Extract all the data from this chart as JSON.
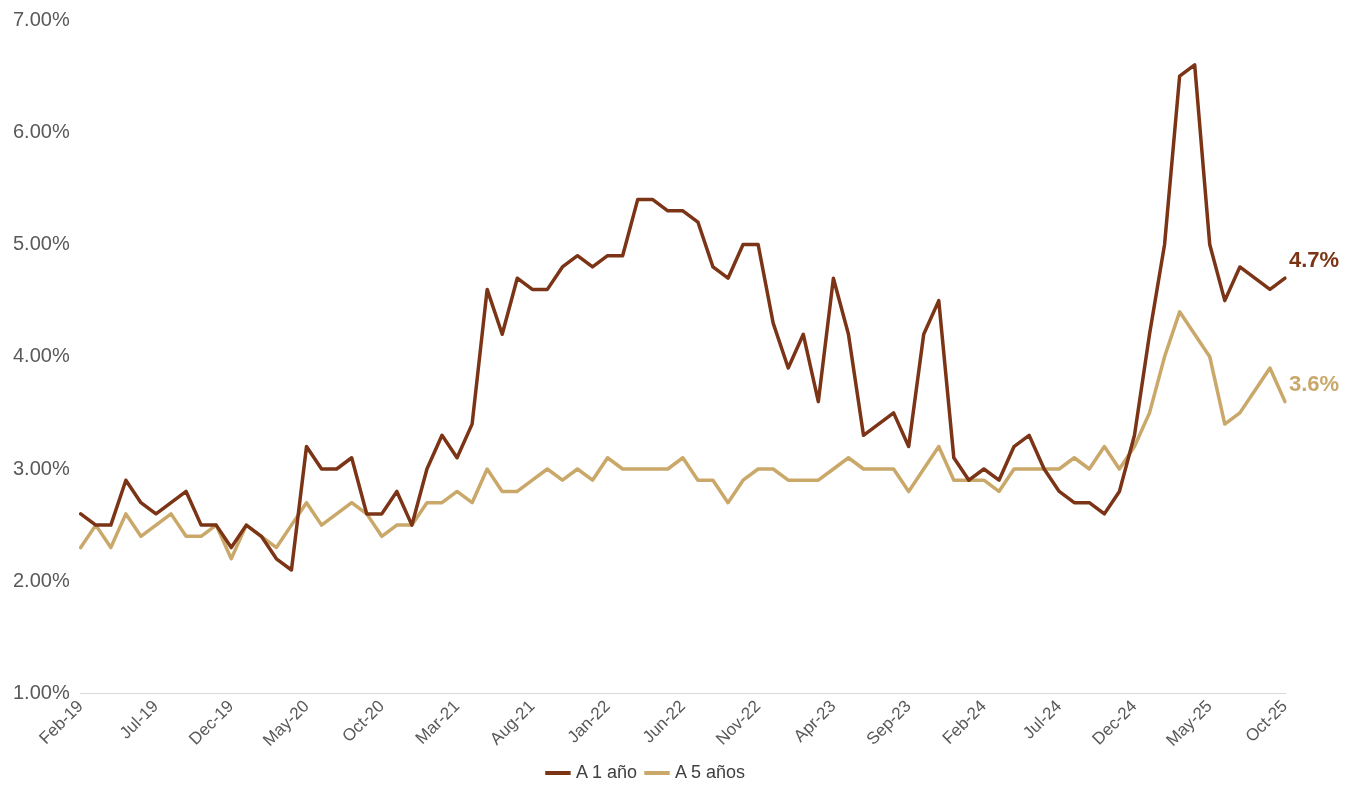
{
  "chart_data": {
    "type": "line",
    "categories": [
      "Feb-19",
      null,
      null,
      null,
      null,
      "Jul-19",
      null,
      null,
      null,
      null,
      "Dec-19",
      null,
      null,
      null,
      null,
      "May-20",
      null,
      null,
      null,
      null,
      "Oct-20",
      null,
      null,
      null,
      null,
      "Mar-21",
      null,
      null,
      null,
      null,
      "Aug-21",
      null,
      null,
      null,
      null,
      "Jan-22",
      null,
      null,
      null,
      null,
      "Jun-22",
      null,
      null,
      null,
      null,
      "Nov-22",
      null,
      null,
      null,
      null,
      "Apr-23",
      null,
      null,
      null,
      null,
      "Sep-23",
      null,
      null,
      null,
      null,
      "Feb-24",
      null,
      null,
      null,
      null,
      "Jul-24",
      null,
      null,
      null,
      null,
      "Dec-24",
      null,
      null,
      null,
      null,
      "May-25",
      null,
      null,
      null,
      null,
      "Oct-25"
    ],
    "series": [
      {
        "name": "A 1 año",
        "color": "#7b3416",
        "values": [
          2.6,
          2.5,
          2.5,
          2.9,
          2.7,
          2.6,
          2.7,
          2.8,
          2.5,
          2.5,
          2.3,
          2.5,
          2.4,
          2.2,
          2.1,
          3.2,
          3.0,
          3.0,
          3.1,
          2.6,
          2.6,
          2.8,
          2.5,
          3.0,
          3.3,
          3.1,
          3.4,
          4.6,
          4.2,
          4.7,
          4.6,
          4.6,
          4.8,
          4.9,
          4.8,
          4.9,
          4.9,
          5.4,
          5.4,
          5.3,
          5.3,
          5.2,
          4.8,
          4.7,
          5.0,
          5.0,
          4.3,
          3.9,
          4.2,
          3.6,
          4.7,
          4.2,
          3.3,
          3.4,
          3.5,
          3.2,
          4.2,
          4.5,
          3.1,
          2.9,
          3.0,
          2.9,
          3.2,
          3.3,
          3.0,
          2.8,
          2.7,
          2.7,
          2.6,
          2.8,
          3.3,
          4.2,
          5.0,
          6.5,
          6.6,
          5.0,
          4.5,
          4.8,
          4.7,
          4.6,
          4.7
        ],
        "value_labels": [
          null,
          null,
          null,
          null,
          null,
          null,
          null,
          null,
          null,
          null,
          null,
          null,
          null,
          null,
          null,
          null,
          null,
          null,
          null,
          null,
          null,
          null,
          null,
          null,
          null,
          null,
          null,
          null,
          null,
          null,
          null,
          null,
          null,
          null,
          null,
          null,
          null,
          null,
          null,
          null,
          null,
          null,
          null,
          null,
          null,
          null,
          null,
          null,
          null,
          null,
          null,
          null,
          null,
          null,
          null,
          null,
          null,
          null,
          null,
          null,
          null,
          null,
          null,
          null,
          null,
          null,
          null,
          null,
          null,
          null,
          null,
          null,
          null,
          null,
          null,
          null,
          null,
          null,
          null,
          null,
          "4.7%"
        ]
      },
      {
        "name": "A 5 años",
        "color": "#c9a86a",
        "values": [
          2.3,
          2.5,
          2.3,
          2.6,
          2.4,
          2.5,
          2.6,
          2.4,
          2.4,
          2.5,
          2.2,
          2.5,
          2.4,
          2.3,
          2.5,
          2.7,
          2.5,
          2.6,
          2.7,
          2.6,
          2.4,
          2.5,
          2.5,
          2.7,
          2.7,
          2.8,
          2.7,
          3.0,
          2.8,
          2.8,
          2.9,
          3.0,
          2.9,
          3.0,
          2.9,
          3.1,
          3.0,
          3.0,
          3.0,
          3.0,
          3.1,
          2.9,
          2.9,
          2.7,
          2.9,
          3.0,
          3.0,
          2.9,
          2.9,
          2.9,
          3.0,
          3.1,
          3.0,
          3.0,
          3.0,
          2.8,
          3.0,
          3.2,
          2.9,
          2.9,
          2.9,
          2.8,
          3.0,
          3.0,
          3.0,
          3.0,
          3.1,
          3.0,
          3.2,
          3.0,
          3.2,
          3.5,
          4.0,
          4.4,
          4.2,
          4.0,
          3.4,
          3.5,
          3.7,
          3.9,
          3.6
        ],
        "value_labels": [
          null,
          null,
          null,
          null,
          null,
          null,
          null,
          null,
          null,
          null,
          null,
          null,
          null,
          null,
          null,
          null,
          null,
          null,
          null,
          null,
          null,
          null,
          null,
          null,
          null,
          null,
          null,
          null,
          null,
          null,
          null,
          null,
          null,
          null,
          null,
          null,
          null,
          null,
          null,
          null,
          null,
          null,
          null,
          null,
          null,
          null,
          null,
          null,
          null,
          null,
          null,
          null,
          null,
          null,
          null,
          null,
          null,
          null,
          null,
          null,
          null,
          null,
          null,
          null,
          null,
          null,
          null,
          null,
          null,
          null,
          null,
          null,
          null,
          null,
          null,
          null,
          null,
          null,
          null,
          null,
          "3.6%"
        ]
      }
    ],
    "ylim": [
      1,
      7
    ],
    "yticks": [
      {
        "value": 1,
        "label": "1.00%"
      },
      {
        "value": 2,
        "label": "2.00%"
      },
      {
        "value": 3,
        "label": "3.00%"
      },
      {
        "value": 4,
        "label": "4.00%"
      },
      {
        "value": 5,
        "label": "5.00%"
      },
      {
        "value": 6,
        "label": "6.00%"
      },
      {
        "value": 7,
        "label": "7.00%"
      }
    ],
    "legend": "bottom",
    "marker": "none",
    "line_style": "solid"
  }
}
